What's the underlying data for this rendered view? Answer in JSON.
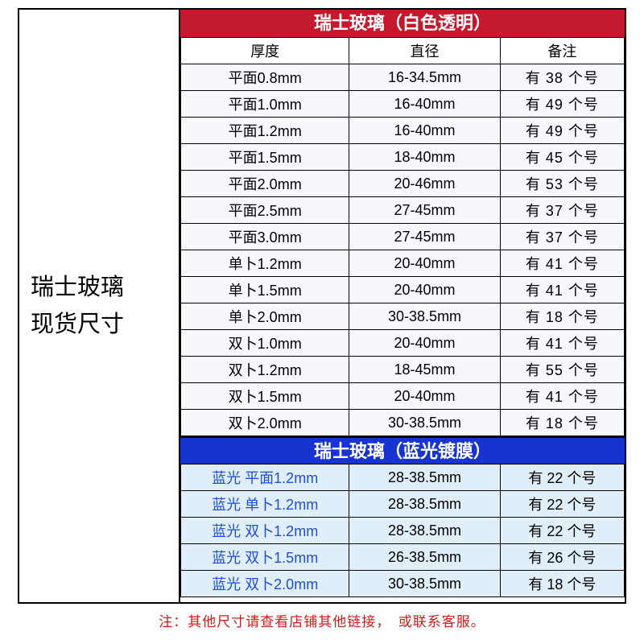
{
  "left_title_line1": "瑞士玻璃",
  "left_title_line2": "现货尺寸",
  "section1": {
    "banner": "瑞士玻璃（白色透明）",
    "headers": {
      "c1": "厚度",
      "c2": "直径",
      "c3": "备注"
    },
    "rows": [
      {
        "c1": "平面0.8mm",
        "c2": "16-34.5mm",
        "c3": "有 38 个号"
      },
      {
        "c1": "平面1.0mm",
        "c2": "16-40mm",
        "c3": "有 49 个号"
      },
      {
        "c1": "平面1.2mm",
        "c2": "16-40mm",
        "c3": "有 49 个号"
      },
      {
        "c1": "平面1.5mm",
        "c2": "18-40mm",
        "c3": "有 45 个号"
      },
      {
        "c1": "平面2.0mm",
        "c2": "20-46mm",
        "c3": "有 53 个号"
      },
      {
        "c1": "平面2.5mm",
        "c2": "27-45mm",
        "c3": "有 37 个号"
      },
      {
        "c1": "平面3.0mm",
        "c2": "27-45mm",
        "c3": "有 37 个号"
      },
      {
        "c1": "单卜1.2mm",
        "c2": "20-40mm",
        "c3": "有 41 个号"
      },
      {
        "c1": "单卜1.5mm",
        "c2": "20-40mm",
        "c3": "有 41 个号"
      },
      {
        "c1": "单卜2.0mm",
        "c2": "30-38.5mm",
        "c3": "有 18 个号"
      },
      {
        "c1": "双卜1.0mm",
        "c2": "20-40mm",
        "c3": "有 41 个号"
      },
      {
        "c1": "双卜1.2mm",
        "c2": "18-45mm",
        "c3": "有 55 个号"
      },
      {
        "c1": "双卜1.5mm",
        "c2": "20-40mm",
        "c3": "有 41 个号"
      },
      {
        "c1": "双卜2.0mm",
        "c2": "30-38.5mm",
        "c3": "有 18 个号"
      }
    ]
  },
  "section2": {
    "banner": "瑞士玻璃（蓝光镀膜）",
    "rows": [
      {
        "c1": "蓝光 平面1.2mm",
        "c2": "28-38.5mm",
        "c3": "有 22 个号"
      },
      {
        "c1": "蓝光 单卜1.2mm",
        "c2": "28-38.5mm",
        "c3": "有 22 个号"
      },
      {
        "c1": "蓝光 双卜1.2mm",
        "c2": "28-38.5mm",
        "c3": "有 22 个号"
      },
      {
        "c1": "蓝光 双卜1.5mm",
        "c2": "26-38.5mm",
        "c3": "有 26 个号"
      },
      {
        "c1": "蓝光 双卜2.0mm",
        "c2": "30-38.5mm",
        "c3": "有 18 个号"
      }
    ]
  },
  "footnote": "注：其他尺寸请查看店铺其他链接，　或联系客服。",
  "colors": {
    "red_banner": "#c5192d",
    "blue_banner": "#1733d1",
    "row_white": "#f6f8fb",
    "row_blue": "#dfeef8",
    "blue_text": "#1e4fd6",
    "footnote": "#d11a1a",
    "border": "#000000"
  }
}
